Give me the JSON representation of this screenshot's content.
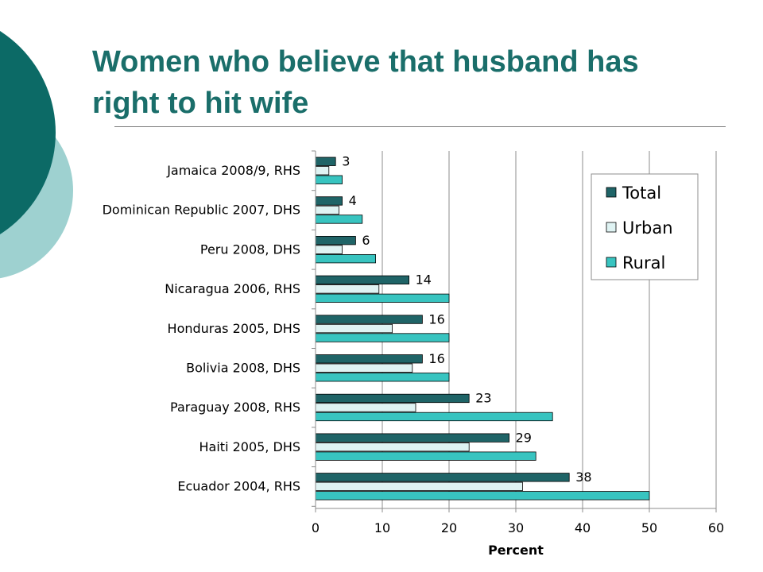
{
  "header": {
    "title_line1": "Women who believe that husband has",
    "title_line2": "right to hit wife"
  },
  "colors": {
    "total": "#1f6467",
    "urban": "#dff3f3",
    "rural": "#38c4c0",
    "title": "#1a6e6a",
    "deco_dark": "#0c6a66",
    "deco_light": "#9ed1d0"
  },
  "chart_data": {
    "type": "bar",
    "orientation": "horizontal",
    "categories": [
      "Jamaica 2008/9, RHS",
      "Dominican Republic 2007, DHS",
      "Peru 2008, DHS",
      "Nicaragua 2006, RHS",
      "Honduras 2005, DHS",
      "Bolivia 2008, DHS",
      "Paraguay 2008, RHS",
      "Haiti 2005, DHS",
      "Ecuador 2004, RHS"
    ],
    "series": [
      {
        "name": "Total",
        "values": [
          3,
          4,
          6,
          14,
          16,
          16,
          23,
          29,
          38
        ]
      },
      {
        "name": "Urban",
        "values": [
          2,
          3.5,
          4,
          9.5,
          11.5,
          14.5,
          15,
          23,
          31
        ]
      },
      {
        "name": "Rural",
        "values": [
          4,
          7,
          9,
          20,
          20,
          20,
          35.5,
          33,
          50
        ]
      }
    ],
    "data_labels": [
      "3",
      "4",
      "6",
      "14",
      "16",
      "16",
      "23",
      "29",
      "38"
    ],
    "xlabel": "Percent",
    "ylabel": "",
    "xlim": [
      0,
      60
    ],
    "xticks": [
      "0",
      "10",
      "20",
      "30",
      "40",
      "50",
      "60"
    ],
    "grid": true,
    "legend_position": "top-right"
  }
}
